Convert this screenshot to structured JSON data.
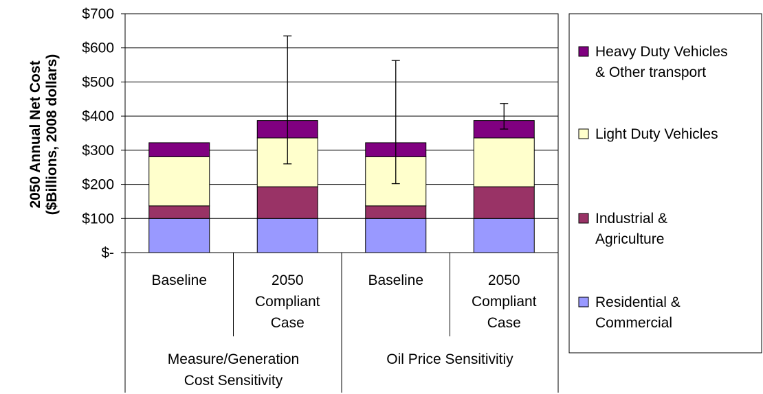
{
  "chart_data": {
    "type": "bar",
    "stacked": true,
    "title": "",
    "ylabel_lines": [
      "2050 Annual Net Cost",
      "($Billions, 2008 dollars)"
    ],
    "xlabel": "",
    "ylim": [
      0,
      700
    ],
    "y_ticks": [
      0,
      100,
      200,
      300,
      400,
      500,
      600,
      700
    ],
    "y_tick_labels": [
      "$-",
      "$100",
      "$200",
      "$300",
      "$400",
      "$500",
      "$600",
      "$700"
    ],
    "grid": true,
    "legend_position": "right",
    "categories": [
      [
        "Baseline"
      ],
      [
        "2050",
        "Compliant",
        "Case"
      ],
      [
        "Baseline"
      ],
      [
        "2050",
        "Compliant",
        "Case"
      ]
    ],
    "groups": [
      {
        "label_lines": [
          "Measure/Generation",
          "Cost Sensitivity"
        ],
        "span": [
          0,
          1
        ]
      },
      {
        "label_lines": [
          "Oil Price Sensitivitiy"
        ],
        "span": [
          2,
          3
        ]
      }
    ],
    "series": [
      {
        "name": "Residential & Commercial",
        "legend_lines": [
          "Residential &",
          "Commercial"
        ],
        "color": "#9999ff",
        "values": [
          100,
          100,
          100,
          100
        ]
      },
      {
        "name": "Industrial & Agriculture",
        "legend_lines": [
          "Industrial &",
          "Agriculture"
        ],
        "color": "#993366",
        "values": [
          37,
          93,
          37,
          93
        ]
      },
      {
        "name": "Light Duty Vehicles",
        "legend_lines": [
          "Light Duty Vehicles"
        ],
        "color": "#ffffcc",
        "values": [
          144,
          143,
          144,
          143
        ]
      },
      {
        "name": "Heavy Duty Vehicles & Other transport",
        "legend_lines": [
          "Heavy Duty Vehicles",
          "& Other transport"
        ],
        "color": "#800080",
        "values": [
          41,
          51,
          41,
          51
        ]
      }
    ],
    "error_bars": [
      null,
      {
        "low": 260,
        "high": 635
      },
      {
        "low": 202,
        "high": 563
      },
      {
        "low": 362,
        "high": 437
      }
    ]
  }
}
